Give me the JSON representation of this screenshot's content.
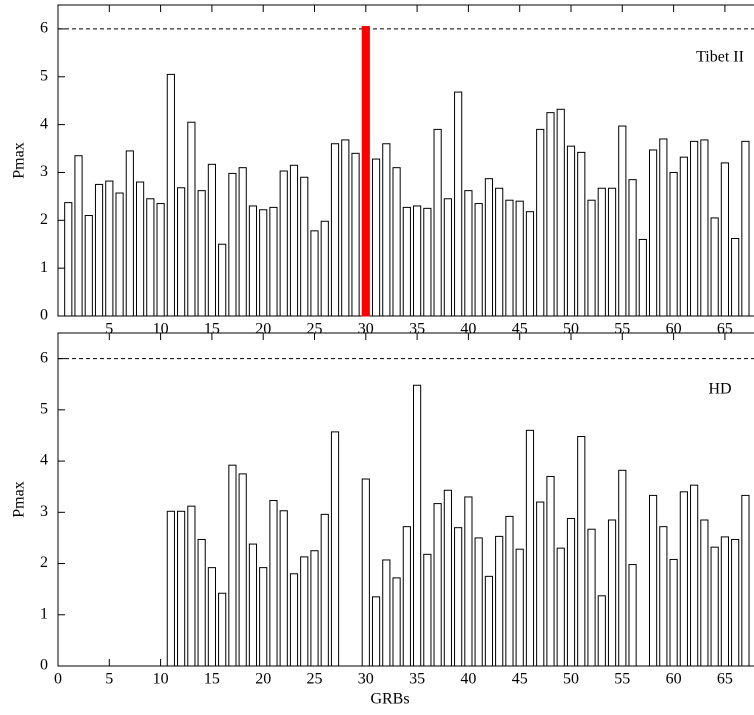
{
  "chart_data": [
    {
      "type": "bar",
      "label": "Tibet II",
      "y_label": "Pmax",
      "x": [
        1,
        2,
        3,
        4,
        5,
        6,
        7,
        8,
        9,
        10,
        11,
        12,
        13,
        14,
        15,
        16,
        17,
        18,
        19,
        20,
        21,
        22,
        23,
        24,
        25,
        26,
        27,
        28,
        29,
        30,
        31,
        32,
        33,
        34,
        35,
        36,
        37,
        38,
        39,
        40,
        41,
        42,
        43,
        44,
        45,
        46,
        47,
        48,
        49,
        50,
        51,
        52,
        53,
        54,
        55,
        56,
        57,
        58,
        59,
        60,
        61,
        62,
        63,
        64,
        65,
        66,
        67
      ],
      "values": [
        2.37,
        3.35,
        2.1,
        2.75,
        2.82,
        2.57,
        3.45,
        2.8,
        2.45,
        2.35,
        5.05,
        2.68,
        4.05,
        2.62,
        3.17,
        1.5,
        2.98,
        3.1,
        2.3,
        2.22,
        2.27,
        3.03,
        3.15,
        2.9,
        1.78,
        1.98,
        3.6,
        3.68,
        3.4,
        6.05,
        3.28,
        3.6,
        3.1,
        2.27,
        2.3,
        2.25,
        3.9,
        2.45,
        4.68,
        2.62,
        2.35,
        2.87,
        2.67,
        2.42,
        2.4,
        2.18,
        3.9,
        4.25,
        4.32,
        3.55,
        3.42,
        2.42,
        2.67,
        2.67,
        3.97,
        2.85,
        1.6,
        3.47,
        3.7,
        3.0,
        3.32,
        3.65,
        3.68,
        2.05,
        3.2,
        1.62,
        3.65
      ],
      "color": "#ffffff",
      "highlight": {
        "x": 30,
        "color": "#ff0000"
      },
      "reference_line": 6,
      "xlim": [
        0,
        70
      ],
      "xticks": [
        5,
        10,
        15,
        20,
        25,
        30,
        35,
        40,
        45,
        50,
        55,
        60,
        65
      ],
      "ylim": [
        0,
        6.5
      ],
      "yticks": [
        0,
        1,
        2,
        3,
        4,
        5,
        6
      ]
    },
    {
      "type": "bar",
      "label": "HD",
      "y_label": "Pmax",
      "x_label": "GRBs",
      "x": [
        1,
        2,
        3,
        4,
        5,
        6,
        7,
        8,
        9,
        10,
        11,
        12,
        13,
        14,
        15,
        16,
        17,
        18,
        19,
        20,
        21,
        22,
        23,
        24,
        25,
        26,
        27,
        28,
        29,
        30,
        31,
        32,
        33,
        34,
        35,
        36,
        37,
        38,
        39,
        40,
        41,
        42,
        43,
        44,
        45,
        46,
        47,
        48,
        49,
        50,
        51,
        52,
        53,
        54,
        55,
        56,
        57,
        58,
        59,
        60,
        61,
        62,
        63,
        64,
        65,
        66,
        67
      ],
      "values": [
        null,
        null,
        null,
        null,
        null,
        null,
        null,
        null,
        null,
        null,
        3.02,
        3.02,
        3.12,
        2.47,
        1.92,
        1.42,
        3.92,
        3.75,
        2.38,
        1.92,
        3.23,
        3.03,
        1.8,
        2.13,
        2.25,
        2.96,
        4.57,
        null,
        null,
        3.65,
        1.35,
        2.07,
        1.72,
        2.72,
        5.48,
        2.18,
        3.17,
        3.43,
        2.7,
        3.3,
        2.5,
        1.75,
        2.53,
        2.92,
        2.28,
        4.6,
        3.2,
        3.7,
        2.3,
        2.88,
        4.48,
        2.67,
        1.37,
        2.85,
        3.82,
        1.98,
        null,
        3.33,
        2.72,
        2.08,
        3.4,
        3.53,
        2.85,
        2.32,
        2.52,
        2.47,
        3.33
      ],
      "color": "#ffffff",
      "reference_line": 6,
      "xlim": [
        0,
        70
      ],
      "xticks": [
        0,
        5,
        10,
        15,
        20,
        25,
        30,
        35,
        40,
        45,
        50,
        55,
        60,
        65
      ],
      "ylim": [
        0,
        6.5
      ],
      "yticks": [
        0,
        1,
        2,
        3,
        4,
        5,
        6
      ]
    }
  ]
}
